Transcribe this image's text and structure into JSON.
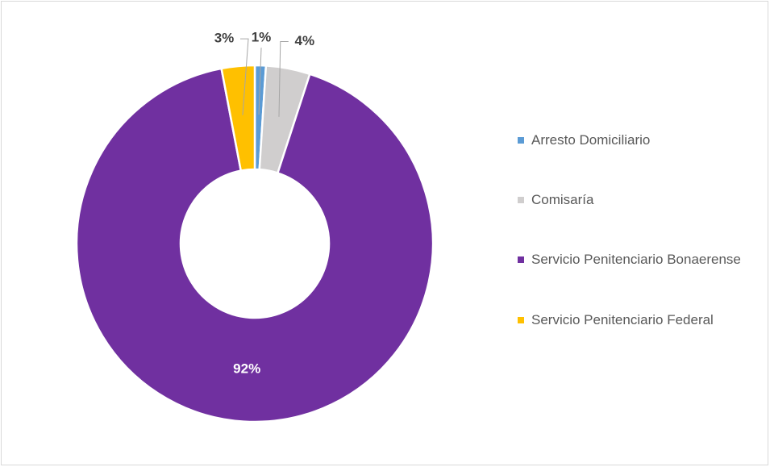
{
  "chart_data": {
    "type": "donut",
    "categories": [
      "Arresto Domiciliario",
      "Comisaría",
      "Servicio Penitenciario Bonaerense",
      "Servicio Penitenciario Federal"
    ],
    "values": [
      1,
      4,
      92,
      3
    ],
    "value_labels": [
      "1%",
      "4%",
      "92%",
      "3%"
    ],
    "colors": [
      "#5b9bd5",
      "#d0cece",
      "#7030a0",
      "#ffc000"
    ],
    "legend": "right"
  }
}
